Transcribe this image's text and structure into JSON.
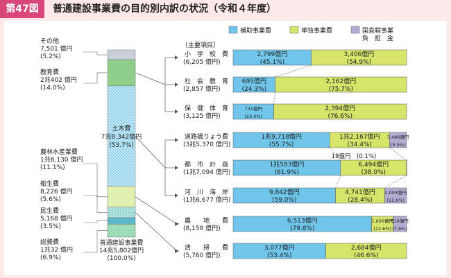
{
  "header": {
    "badge": "第47図",
    "title": "普通建設事業費の目的別内訳の状況（令和４年度）"
  },
  "legend": {
    "items": [
      {
        "label": "補助事業費",
        "color": "#6fc6ea"
      },
      {
        "label": "単独事業費",
        "color": "#d6e46a"
      },
      {
        "label": "国直轄事業",
        "label2": "負　担　金",
        "color": "#b4acd3"
      }
    ]
  },
  "colors": {
    "subsidy": "#6fc6ea",
    "single": "#d6e46a",
    "direct": "#b4acd3",
    "accent": "#d9477a"
  },
  "chart_data": {
    "type": "bar",
    "title": "普通建設事業費の目的別内訳の状況（令和４年度）",
    "stack": {
      "total_label": "普通建設事業費",
      "total_value": "14兆5,802億円",
      "total_pct": "(100.0%)",
      "segments": [
        {
          "name": "その他",
          "value": "7,501 億円",
          "pct": "(5.2%)",
          "share": 5.2,
          "fill": "#c9cfd6"
        },
        {
          "name": "教育費",
          "value": "2兆402 億円",
          "pct": "(14.0%)",
          "share": 14.0,
          "fill": "#8fcf8a"
        },
        {
          "name": "土木費",
          "value": "7兆8,342億円",
          "pct": "(53.7%)",
          "share": 53.7,
          "fill": "#bfe3f3"
        },
        {
          "name": "農林水産業費",
          "value": "1兆6,130 億円",
          "pct": "(11.1%)",
          "share": 11.1,
          "fill": "#dff0b0"
        },
        {
          "name": "衛生費",
          "value": "8,226 億円",
          "pct": "(5.6%)",
          "share": 5.6,
          "fill": "#b6e6e0"
        },
        {
          "name": "民生費",
          "value": "5,168 億円",
          "pct": "(3.5%)",
          "share": 3.5,
          "fill": "#5fb6c8"
        },
        {
          "name": "総務費",
          "value": "1兆32 億円",
          "pct": "(6.9%)",
          "share": 6.9,
          "fill": "#7fd1a0"
        }
      ]
    },
    "section_label": "〔主要項目〕",
    "bars": [
      {
        "name": "小　学　校　費",
        "total": "(6,205 億円)",
        "segments": [
          {
            "kind": "subsidy",
            "share": 45.1,
            "value": "2,799億円",
            "pct": "(45.1%)"
          },
          {
            "kind": "single",
            "share": 54.9,
            "value": "3,406億円",
            "pct": "(54.9%)"
          }
        ]
      },
      {
        "name": "社　会　教　育　費",
        "total": "(2,857 億円)",
        "segments": [
          {
            "kind": "subsidy",
            "share": 24.3,
            "value": "695億円",
            "pct": "(24.3%)"
          },
          {
            "kind": "single",
            "share": 75.7,
            "value": "2,162億円",
            "pct": "(75.7%)"
          }
        ]
      },
      {
        "name": "保　健　体　育　費",
        "total": "(3,125 億円)",
        "segments": [
          {
            "kind": "subsidy",
            "share": 23.4,
            "value": "731億円",
            "pct": "(23.4%)"
          },
          {
            "kind": "single",
            "share": 76.6,
            "value": "2,394億円",
            "pct": "(76.6%)"
          }
        ]
      },
      {
        "name": "道路橋りょう費",
        "total": "(3兆5,370 億円)",
        "segments": [
          {
            "kind": "subsidy",
            "share": 55.7,
            "value": "1兆9,718億円",
            "pct": "(55.7%)"
          },
          {
            "kind": "single",
            "share": 34.4,
            "value": "1兆2,167億円",
            "pct": "(34.4%)"
          },
          {
            "kind": "direct",
            "share": 9.9,
            "value": "3,486億円",
            "pct": "(9.9%)"
          }
        ]
      },
      {
        "name": "都　市　計　画　費",
        "total": "(1兆7,094 億円)",
        "segments": [
          {
            "kind": "subsidy",
            "share": 61.9,
            "value": "1兆583億円",
            "pct": "(61.9%)"
          },
          {
            "kind": "single",
            "share": 38.0,
            "value": "6,494億円",
            "pct": "(38.0%)"
          },
          {
            "kind": "direct",
            "share": 0.1,
            "value": "18億円",
            "pct": "(0.1%)"
          }
        ]
      },
      {
        "name": "河　川　海　岸　費",
        "total": "(1兆6,677 億円)",
        "segments": [
          {
            "kind": "subsidy",
            "share": 59.0,
            "value": "9,842億円",
            "pct": "(59.0%)"
          },
          {
            "kind": "single",
            "share": 28.4,
            "value": "4,741億円",
            "pct": "(28.4%)"
          },
          {
            "kind": "direct",
            "share": 12.6,
            "value": "2,094億円",
            "pct": "(12.6%)"
          }
        ]
      },
      {
        "name": "農　　地　　費",
        "total": "(8,158 億円)",
        "segments": [
          {
            "kind": "subsidy",
            "share": 79.8,
            "value": "6,513億円",
            "pct": "(79.8%)"
          },
          {
            "kind": "single",
            "share": 12.6,
            "value": "1,026億円",
            "pct": "(12.6%)"
          },
          {
            "kind": "direct",
            "share": 7.6,
            "value": "619億円",
            "pct": "(7.6%)"
          }
        ]
      },
      {
        "name": "清　　掃　　費",
        "total": "(5,760 億円)",
        "segments": [
          {
            "kind": "subsidy",
            "share": 53.4,
            "value": "3,077億円",
            "pct": "(53.4%)"
          },
          {
            "kind": "single",
            "share": 46.6,
            "value": "2,684億円",
            "pct": "(46.6%)"
          }
        ]
      }
    ]
  }
}
